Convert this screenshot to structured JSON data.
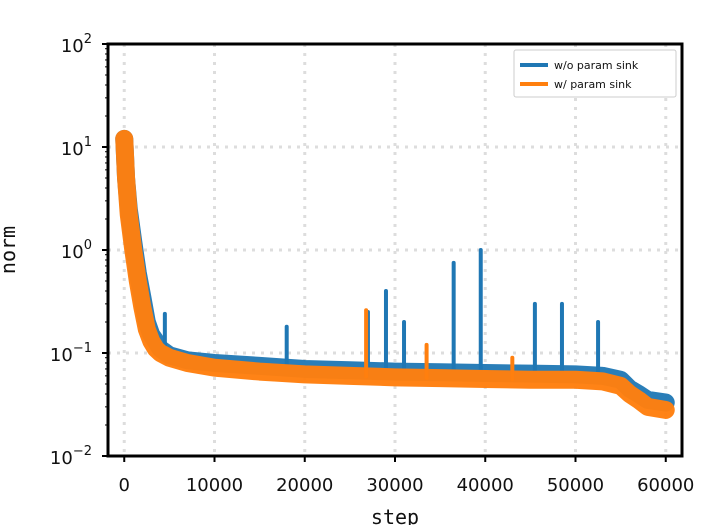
{
  "chart_data": {
    "type": "line",
    "xlabel": "step",
    "ylabel": "norm",
    "xlim": [
      -1800,
      61800
    ],
    "ylim": [
      0.01,
      100
    ],
    "yscale": "log",
    "grid": true,
    "legend_position": "top-right",
    "x_ticks": [
      0,
      10000,
      20000,
      30000,
      40000,
      50000,
      60000
    ],
    "x_tick_labels": [
      "0",
      "10000",
      "20000",
      "30000",
      "40000",
      "50000",
      "60000"
    ],
    "y_ticks": [
      0.01,
      0.1,
      1,
      10,
      100
    ],
    "y_tick_labels": [
      {
        "base": "10",
        "exp": "−2"
      },
      {
        "base": "10",
        "exp": "−1"
      },
      {
        "base": "10",
        "exp": "0"
      },
      {
        "base": "10",
        "exp": "1"
      },
      {
        "base": "10",
        "exp": "2"
      }
    ],
    "series": [
      {
        "name": "w/o param sink",
        "color": "#1f77b4",
        "x": [
          0,
          200,
          500,
          1000,
          1500,
          2000,
          2500,
          3000,
          3500,
          4000,
          5000,
          7000,
          10000,
          15000,
          20000,
          25000,
          30000,
          35000,
          40000,
          45000,
          50000,
          53000,
          55000,
          56000,
          57000,
          58000,
          60000
        ],
        "y": [
          12,
          5,
          2.5,
          1.2,
          0.6,
          0.35,
          0.2,
          0.15,
          0.13,
          0.11,
          0.095,
          0.085,
          0.08,
          0.075,
          0.07,
          0.068,
          0.066,
          0.065,
          0.064,
          0.063,
          0.062,
          0.06,
          0.055,
          0.045,
          0.04,
          0.035,
          0.033
        ],
        "spikes": [
          {
            "x": 4500,
            "y": 0.24
          },
          {
            "x": 18000,
            "y": 0.18
          },
          {
            "x": 27000,
            "y": 0.25
          },
          {
            "x": 29000,
            "y": 0.4
          },
          {
            "x": 31000,
            "y": 0.2
          },
          {
            "x": 36500,
            "y": 0.75
          },
          {
            "x": 39500,
            "y": 1.0
          },
          {
            "x": 45500,
            "y": 0.3
          },
          {
            "x": 48500,
            "y": 0.3
          },
          {
            "x": 52500,
            "y": 0.2
          }
        ]
      },
      {
        "name": "w/ param sink",
        "color": "#ff7f0e",
        "x": [
          0,
          200,
          500,
          1000,
          1500,
          2000,
          2500,
          3000,
          3500,
          4000,
          5000,
          7000,
          10000,
          15000,
          20000,
          25000,
          30000,
          35000,
          40000,
          45000,
          50000,
          53000,
          55000,
          56000,
          57000,
          58000,
          60000
        ],
        "y": [
          12,
          5,
          2.2,
          1.0,
          0.5,
          0.28,
          0.17,
          0.13,
          0.11,
          0.1,
          0.09,
          0.08,
          0.072,
          0.066,
          0.062,
          0.06,
          0.058,
          0.057,
          0.056,
          0.055,
          0.055,
          0.053,
          0.048,
          0.04,
          0.035,
          0.03,
          0.028
        ],
        "spikes": [
          {
            "x": 26800,
            "y": 0.26
          },
          {
            "x": 33500,
            "y": 0.12
          },
          {
            "x": 43000,
            "y": 0.09
          }
        ]
      }
    ]
  }
}
